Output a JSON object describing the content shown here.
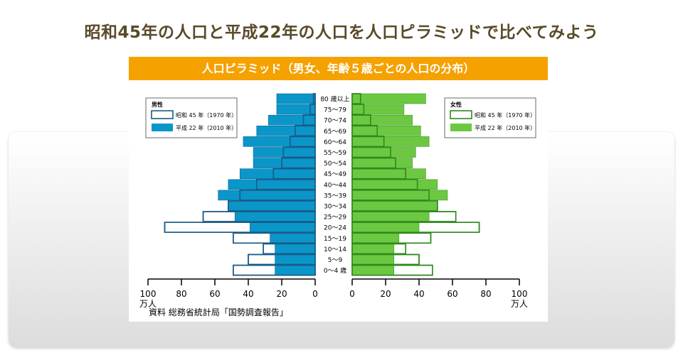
{
  "page": {
    "title": "昭和45年の人口と平成22年の人口を人口ピラミッドで比べてみよう"
  },
  "chart_data": {
    "type": "bar",
    "title": "人口ピラミッド（男女、年齢５歳ごとの人口の分布）",
    "categories": [
      "80 歳以上",
      "75～79",
      "70～74",
      "65～69",
      "60～64",
      "55～59",
      "50～54",
      "45～49",
      "40～44",
      "35～39",
      "30～34",
      "25～29",
      "20～24",
      "15～19",
      "10～14",
      "5～9",
      "0～4 歳"
    ],
    "male": {
      "label": "男性",
      "series": [
        {
          "name": "昭和 45 年（1970 年）",
          "values": [
            1,
            3,
            7,
            12,
            15,
            19,
            20,
            25,
            35,
            45,
            52,
            67,
            90,
            49,
            31,
            40,
            49
          ]
        },
        {
          "name": "平成 22 年（2010 年）",
          "values": [
            23,
            23,
            28,
            35,
            43,
            37,
            37,
            45,
            52,
            58,
            52,
            48,
            39,
            27,
            24,
            24,
            24
          ]
        }
      ]
    },
    "female": {
      "label": "女性",
      "series": [
        {
          "name": "昭和 45 年（1970 年）",
          "values": [
            5,
            7,
            11,
            15,
            19,
            23,
            26,
            32,
            39,
            46,
            51,
            62,
            76,
            47,
            32,
            40,
            48
          ]
        },
        {
          "name": "平成 22 年（2010 年）",
          "values": [
            44,
            31,
            36,
            41,
            46,
            38,
            36,
            44,
            51,
            57,
            51,
            46,
            40,
            28,
            25,
            25,
            25
          ]
        }
      ]
    },
    "xlim": [
      0,
      100
    ],
    "left_ticks": [
      "100",
      "80",
      "60",
      "40",
      "20",
      "0"
    ],
    "right_ticks": [
      "0",
      "20",
      "40",
      "60",
      "80",
      "100"
    ],
    "unit": "万人",
    "colors": {
      "male": "#0a96c8",
      "male_outline": "#1a5a86",
      "female": "#6cc840",
      "female_outline": "#2e8a1e",
      "banner": "#f5a100"
    },
    "legend_placement": "top-left and top-right",
    "source": "資料 総務省統計局「国勢調査報告」"
  }
}
